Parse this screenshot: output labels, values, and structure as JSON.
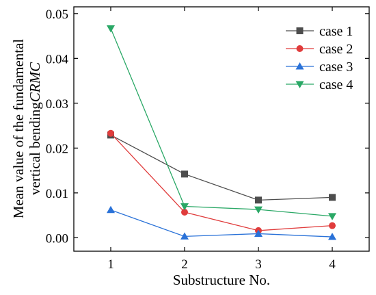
{
  "chart_data": {
    "type": "line",
    "x": [
      1,
      2,
      3,
      4
    ],
    "xlabel": "Substructure No.",
    "ylabel_line1": "Mean value of the fundamental",
    "ylabel_line2": "vertical bending",
    "ylabel_italic": "CRMC",
    "xlim": [
      0.5,
      4.5
    ],
    "ylim": [
      -0.003,
      0.0515
    ],
    "xticks": [
      1,
      2,
      3,
      4
    ],
    "xtick_labels": [
      "1",
      "2",
      "3",
      "4"
    ],
    "yticks": [
      0.0,
      0.01,
      0.02,
      0.03,
      0.04,
      0.05
    ],
    "ytick_labels": [
      "0.00",
      "0.01",
      "0.02",
      "0.03",
      "0.04",
      "0.05"
    ],
    "legend_position": "top-right",
    "grid": false,
    "series": [
      {
        "name": "case 1",
        "color": "#4d4d4d",
        "marker": "square",
        "values": [
          0.0229,
          0.0142,
          0.0084,
          0.009
        ]
      },
      {
        "name": "case 2",
        "color": "#e03c3c",
        "marker": "circle",
        "values": [
          0.0233,
          0.0057,
          0.0016,
          0.0027
        ]
      },
      {
        "name": "case 3",
        "color": "#2a72d8",
        "marker": "triangle-up",
        "values": [
          0.0062,
          0.0003,
          0.0009,
          0.0002
        ]
      },
      {
        "name": "case 4",
        "color": "#2aa866",
        "marker": "triangle-down",
        "values": [
          0.0467,
          0.007,
          0.0063,
          0.0048
        ]
      }
    ]
  }
}
